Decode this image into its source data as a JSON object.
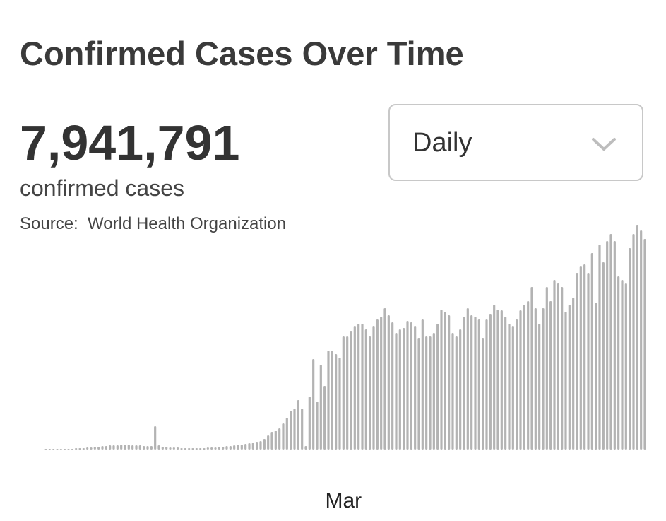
{
  "header": {
    "title": "Confirmed Cases Over Time",
    "count": "7,941,791",
    "count_label": "confirmed cases",
    "source": "Source:  World Health Organization"
  },
  "dropdown": {
    "selected": "Daily"
  },
  "chart_data": {
    "type": "bar",
    "color": "#b3b3b3",
    "categories": [
      null,
      null,
      null,
      null,
      null,
      null,
      null,
      null,
      null,
      null,
      null,
      null,
      null,
      null,
      null,
      null,
      null,
      null,
      null,
      null,
      null,
      null,
      null,
      null,
      null,
      null,
      null,
      null,
      null,
      null,
      null,
      null,
      null,
      null,
      null,
      null,
      null,
      null,
      null,
      null,
      null,
      null,
      null,
      null,
      null,
      null,
      null,
      null,
      null,
      null,
      null,
      null,
      null,
      null,
      null,
      null,
      null,
      null,
      null,
      null,
      null,
      null,
      null,
      null,
      null,
      null,
      null,
      null,
      null,
      null,
      null,
      null,
      null,
      null,
      null,
      null,
      null,
      null,
      null,
      "Mar",
      null,
      null,
      null,
      null,
      null,
      null,
      null,
      null,
      null,
      null,
      null,
      null,
      null,
      null,
      null,
      null,
      null,
      null,
      null,
      null,
      null,
      null,
      null,
      null,
      null,
      null,
      null,
      null,
      null,
      null,
      null,
      null,
      null,
      null,
      null,
      null,
      null,
      null,
      null,
      null,
      null,
      null,
      null,
      null,
      null,
      null,
      null,
      null,
      null,
      null,
      null,
      null,
      null,
      null,
      null,
      null,
      null,
      null,
      null,
      null,
      null,
      null,
      null,
      null,
      null,
      null,
      null,
      null,
      null,
      null,
      null,
      null,
      null,
      null,
      null,
      null,
      null,
      null,
      null,
      null
    ],
    "values": [
      400,
      400,
      400,
      400,
      400,
      400,
      400,
      400,
      800,
      800,
      800,
      1200,
      1200,
      1600,
      1600,
      2000,
      2000,
      2400,
      2400,
      2400,
      2800,
      2800,
      2800,
      2400,
      2400,
      2400,
      2000,
      2000,
      2000,
      13200,
      2400,
      1600,
      1600,
      1200,
      1200,
      1200,
      800,
      800,
      800,
      800,
      800,
      800,
      800,
      1200,
      1200,
      1200,
      1600,
      1600,
      2000,
      2000,
      2400,
      2800,
      2800,
      3200,
      3600,
      4000,
      4400,
      4800,
      6000,
      8000,
      10000,
      10800,
      12000,
      14800,
      18000,
      22000,
      23200,
      28000,
      23200,
      2000,
      30000,
      51200,
      27200,
      48000,
      36000,
      56000,
      56000,
      54000,
      52000,
      64000,
      64000,
      67200,
      70000,
      71200,
      71200,
      68000,
      64000,
      70000,
      74000,
      75200,
      80000,
      76000,
      72000,
      66000,
      68000,
      68800,
      72800,
      72000,
      70000,
      63200,
      74000,
      64000,
      64000,
      66000,
      71200,
      79200,
      78000,
      76000,
      66000,
      64000,
      68000,
      75200,
      80000,
      76000,
      75200,
      74000,
      63200,
      74000,
      76800,
      82000,
      79200,
      78800,
      75200,
      71200,
      70000,
      74000,
      78800,
      82000,
      84000,
      92000,
      80000,
      71200,
      80000,
      92000,
      84000,
      96000,
      94000,
      92000,
      78000,
      82000,
      86000,
      100000,
      104000,
      104800,
      100000,
      111200,
      83200,
      116000,
      106000,
      118000,
      122000,
      118000,
      98000,
      96000,
      94000,
      114000,
      122000,
      127200,
      124000,
      119200
    ]
  }
}
